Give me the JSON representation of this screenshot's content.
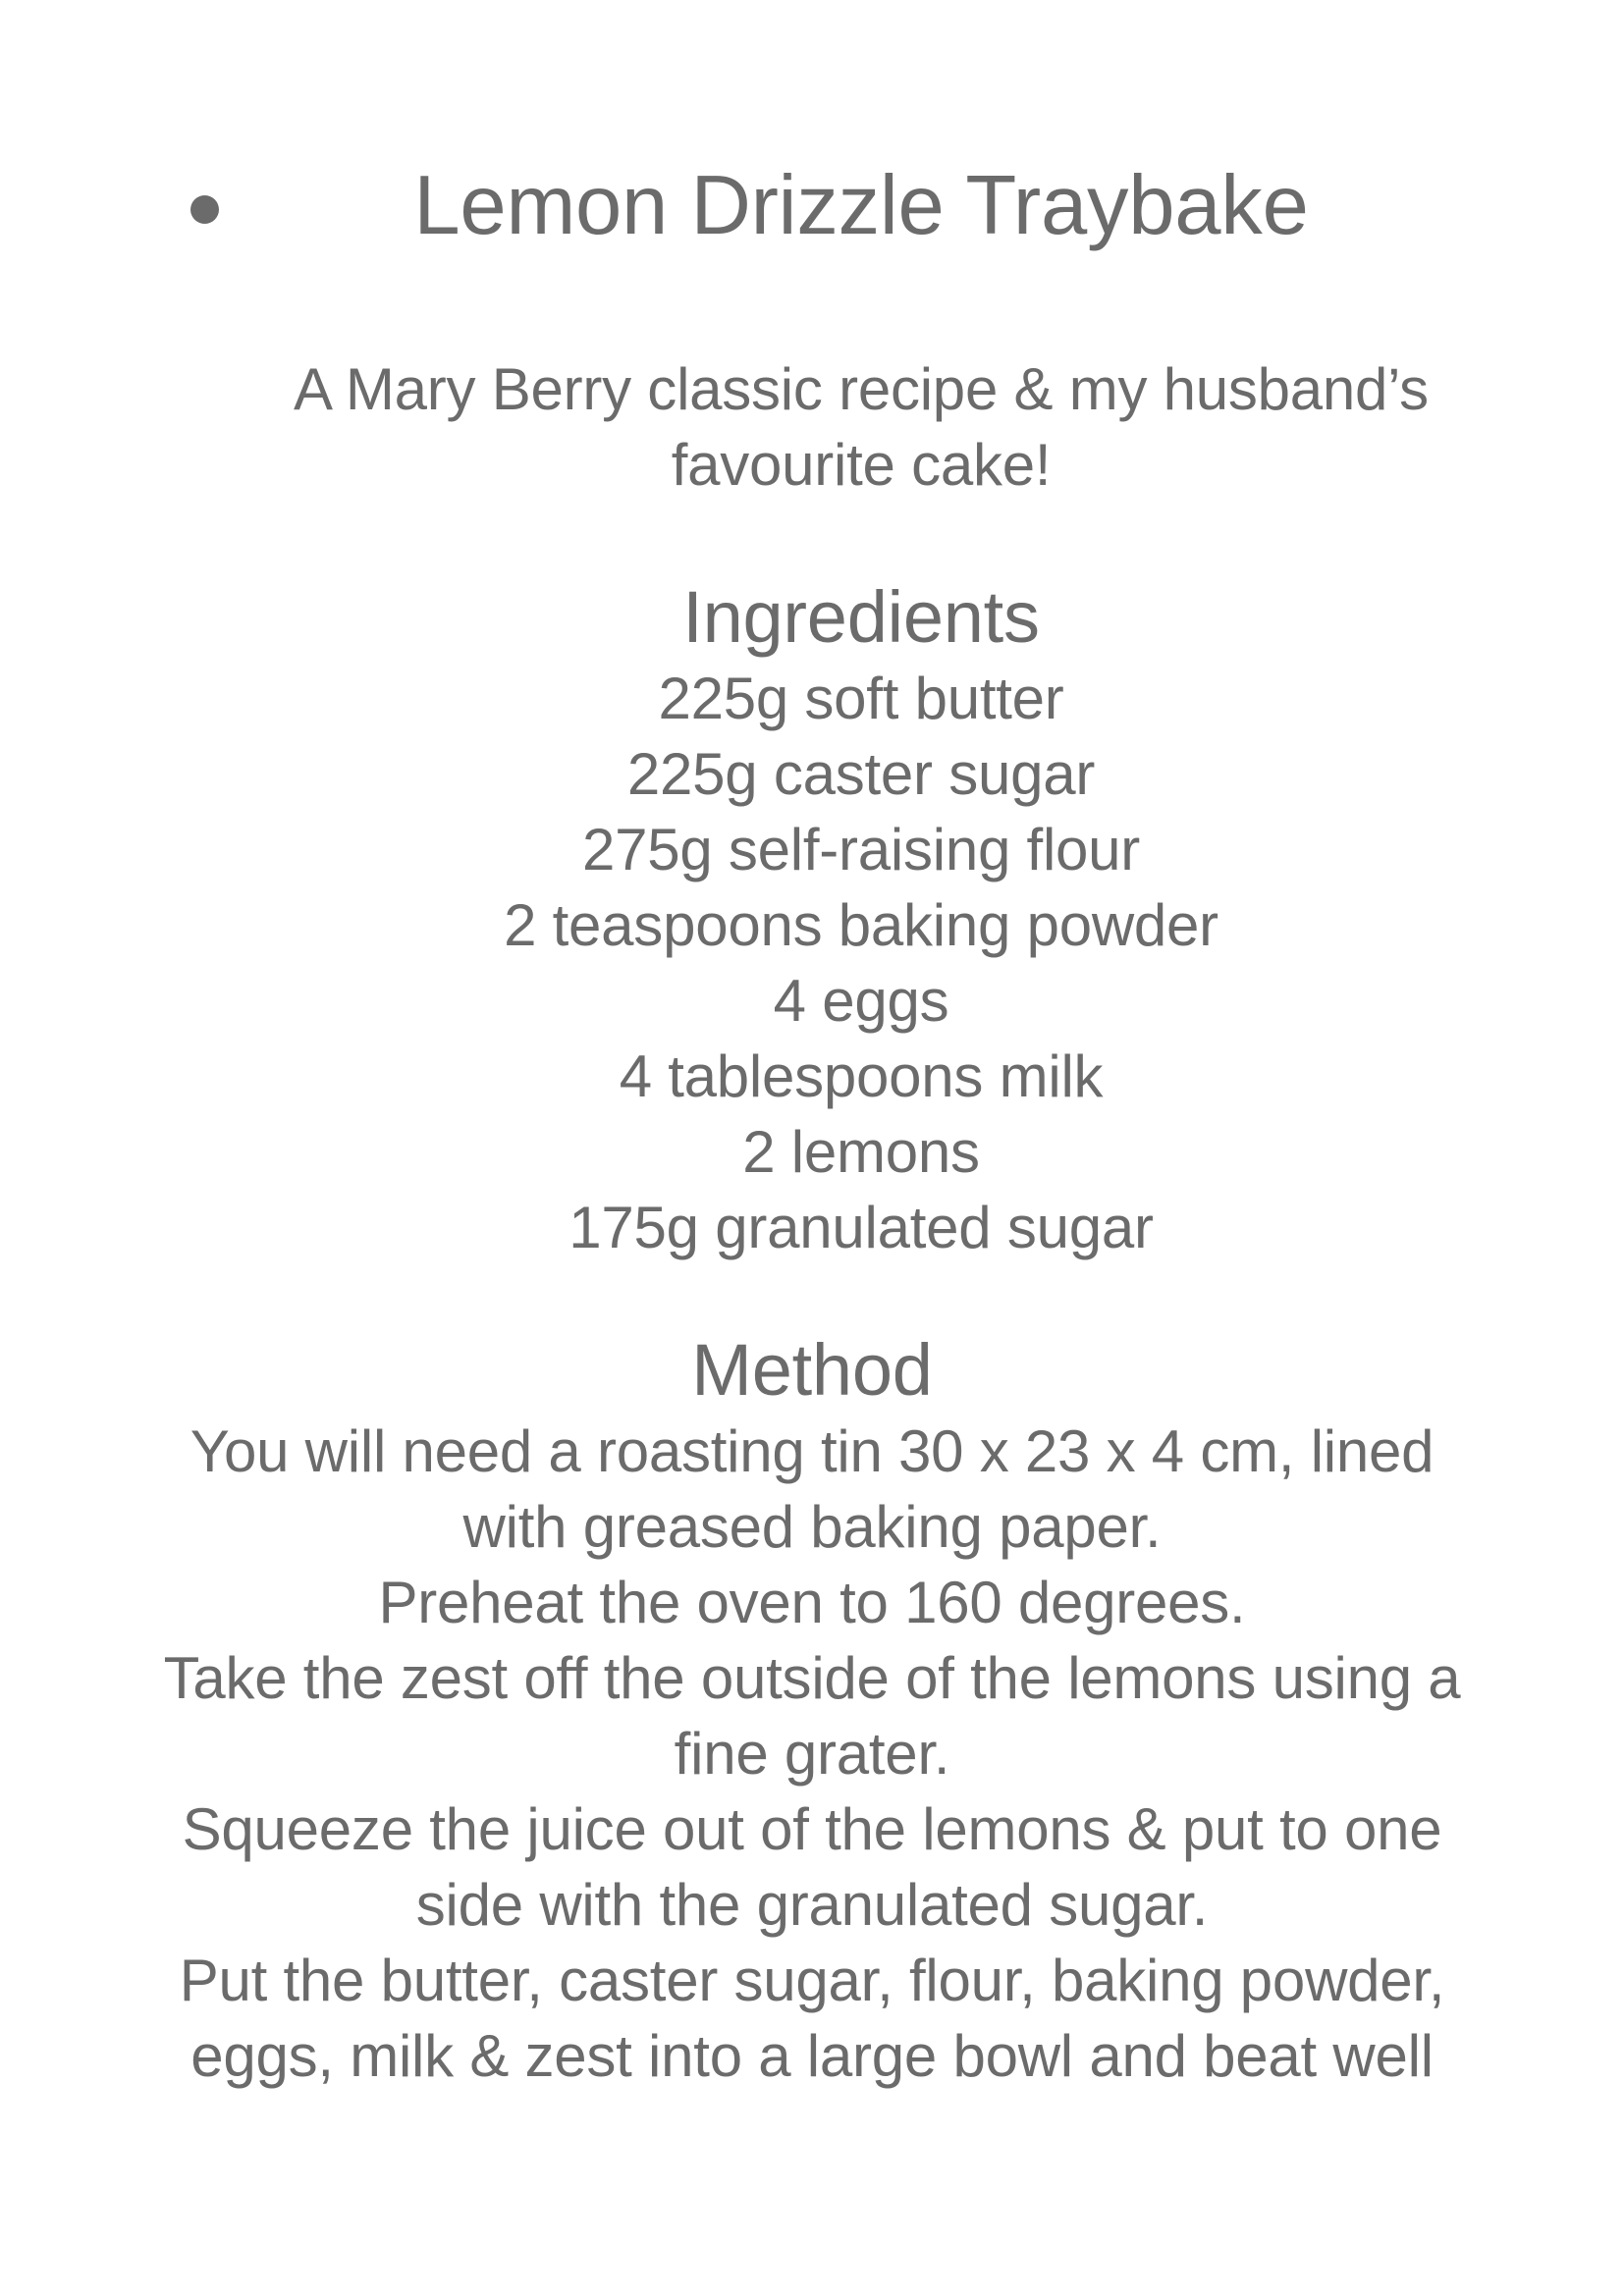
{
  "page": {
    "background_color": "#ffffff",
    "text_color": "#6b6b6b",
    "title": "Lemon Drizzle Traybake",
    "subtitle_lines": [
      "A Mary Berry classic recipe & my husband’s",
      "favourite cake!"
    ],
    "ingredients": {
      "heading": "Ingredients",
      "items": [
        "225g soft butter",
        "225g caster sugar",
        "275g self-raising flour",
        "2 teaspoons baking powder",
        "4 eggs",
        "4 tablespoons milk",
        "2 lemons",
        "175g granulated sugar"
      ]
    },
    "method": {
      "heading": "Method",
      "lines": [
        "You will need a roasting tin 30 x 23 x 4 cm, lined",
        "with greased baking paper.",
        "Preheat the oven to 160 degrees.",
        "Take the zest off the outside of the lemons using a",
        "fine grater.",
        "Squeeze the juice out of the lemons & put to one",
        "side with the granulated sugar.",
        "Put the butter, caster sugar, flour, baking powder,",
        "eggs, milk & zest into a large bowl and beat well"
      ]
    }
  }
}
